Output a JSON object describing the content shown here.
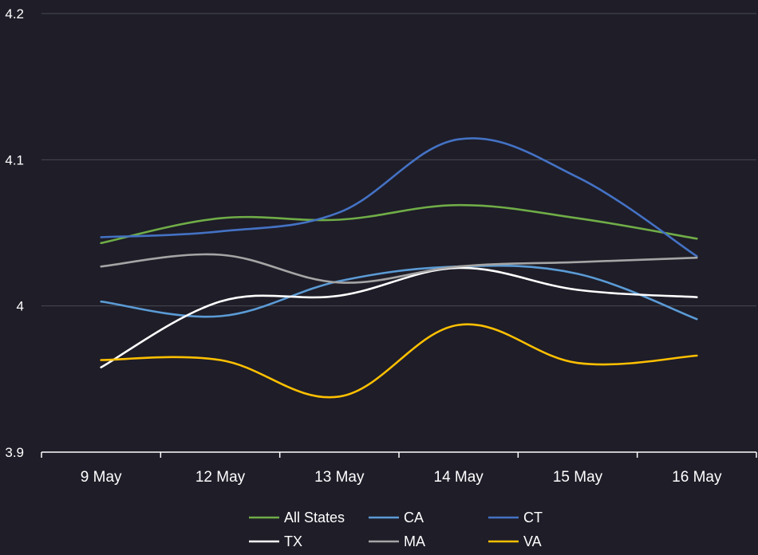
{
  "chart_data": {
    "type": "line",
    "title": "",
    "xlabel": "",
    "ylabel": "",
    "categories": [
      "9 May",
      "12 May",
      "13 May",
      "14 May",
      "15 May",
      "16 May"
    ],
    "ylim": [
      3.9,
      4.2
    ],
    "yticks": [
      "3.9",
      "4",
      "4.1",
      "4.2"
    ],
    "grid": true,
    "legend_position": "bottom",
    "series": [
      {
        "name": "All States",
        "color": "#70ad47",
        "values": [
          4.043,
          4.06,
          4.059,
          4.069,
          4.06,
          4.046
        ]
      },
      {
        "name": "CA",
        "color": "#5b9bd5",
        "values": [
          4.003,
          3.993,
          4.017,
          4.027,
          4.022,
          3.991
        ]
      },
      {
        "name": "CT",
        "color": "#4472c4",
        "values": [
          4.047,
          4.051,
          4.064,
          4.114,
          4.088,
          4.034
        ]
      },
      {
        "name": "TX",
        "color": "#ffffff",
        "values": [
          3.958,
          4.003,
          4.007,
          4.026,
          4.011,
          4.006
        ]
      },
      {
        "name": "MA",
        "color": "#a5a5a5",
        "values": [
          4.027,
          4.035,
          4.016,
          4.027,
          4.03,
          4.033
        ]
      },
      {
        "name": "VA",
        "color": "#ffc000",
        "values": [
          3.963,
          3.963,
          3.938,
          3.987,
          3.961,
          3.966
        ]
      }
    ]
  }
}
